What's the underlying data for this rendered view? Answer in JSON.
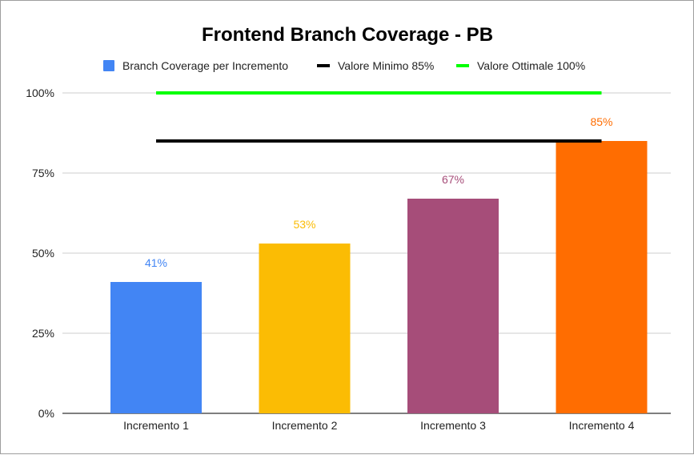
{
  "chart_data": {
    "type": "bar",
    "title": "Frontend Branch Coverage - PB",
    "categories": [
      "Incremento 1",
      "Incremento 2",
      "Incremento 3",
      "Incremento 4"
    ],
    "series": [
      {
        "name": "Branch Coverage per Incremento",
        "values": [
          41,
          53,
          67,
          85
        ],
        "data_labels": [
          "41%",
          "53%",
          "67%",
          "85%"
        ],
        "colors": [
          "#4285f4",
          "#fbbc04",
          "#a64d79",
          "#ff6d01"
        ]
      }
    ],
    "reference_lines": [
      {
        "name": "Valore Minimo 85%",
        "value": 85,
        "color": "#000000"
      },
      {
        "name": "Valore Ottimale 100%",
        "value": 100,
        "color": "#00ff00"
      }
    ],
    "legend": {
      "position": "top",
      "items": [
        {
          "label": "Branch Coverage per Incremento",
          "color": "#4285f4",
          "marker": "square"
        },
        {
          "label": "Valore Minimo 85%",
          "color": "#000000",
          "marker": "line"
        },
        {
          "label": "Valore Ottimale 100%",
          "color": "#00ff00",
          "marker": "line"
        }
      ]
    },
    "ylim": [
      0,
      100
    ],
    "yticks": [
      0,
      25,
      50,
      75,
      100
    ],
    "ytick_labels": [
      "0%",
      "25%",
      "50%",
      "75%",
      "100%"
    ],
    "grid": true,
    "xlabel": "",
    "ylabel": ""
  }
}
